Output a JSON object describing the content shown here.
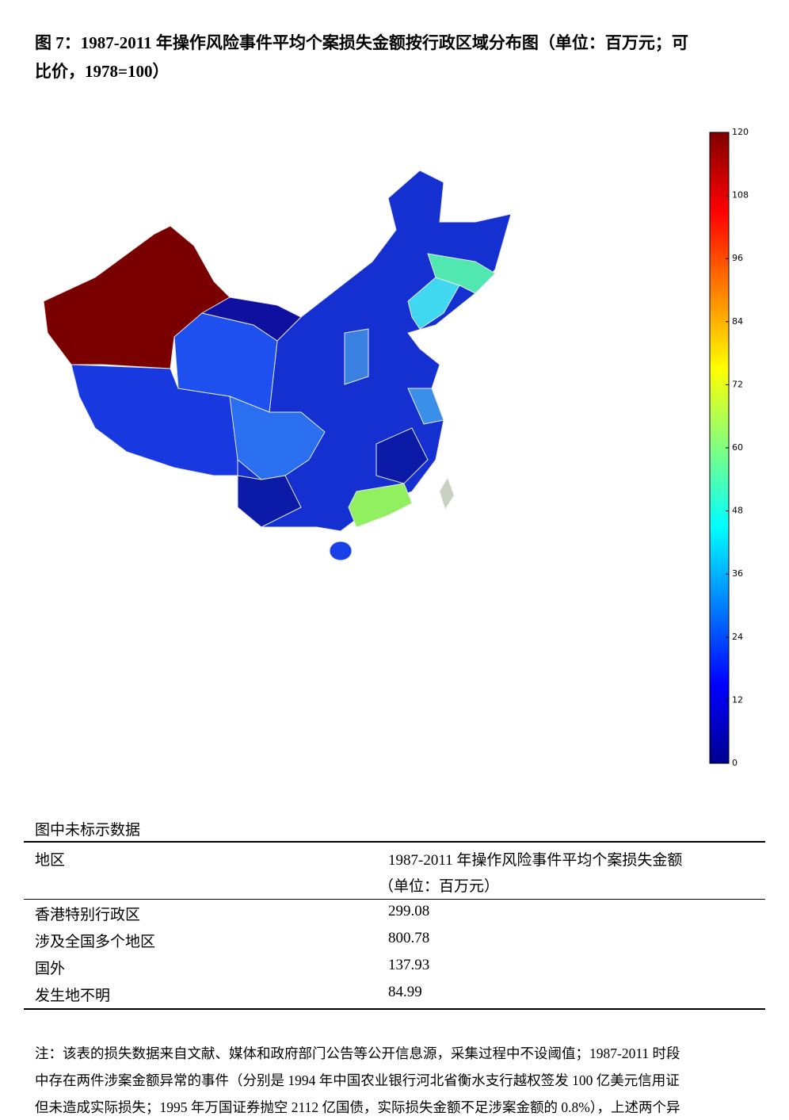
{
  "title_lines": [
    "图 7：1987-2011 年操作风险事件平均个案损失金额按行政区域分布图（单位：百万元；可",
    "比价，1978=100）"
  ],
  "colorbar": {
    "ylim": [
      0,
      120
    ],
    "yticks": [
      0,
      12,
      24,
      36,
      48,
      60,
      72,
      84,
      96,
      108,
      120
    ]
  },
  "table": {
    "caption": "图中未标示数据",
    "header": [
      "地区",
      "1987-2011 年操作风险事件平均个案损失金额",
      "（单位：百万元）"
    ],
    "rows": [
      [
        "香港特别行政区",
        "299.08"
      ],
      [
        "涉及全国多个地区",
        "800.78"
      ],
      [
        "国外",
        "137.93"
      ],
      [
        "发生地不明",
        "84.99"
      ]
    ]
  },
  "note_lines": [
    "注：该表的损失数据来自文献、媒体和政府部门公告等公开信息源，采集过程中不设阈值；1987-2011 时段",
    "中存在两件涉案金额异常的事件（分别是 1994 年中国农业银行河北省衡水支行越权签发 100 亿美元信用证",
    "但未造成实际损失；1995 年万国证券抛空 2112 亿国债，实际损失金额不足涉案金额的 0.8%），上述两个异"
  ]
}
